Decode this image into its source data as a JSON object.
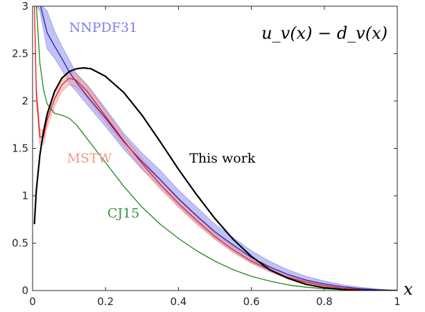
{
  "chart_data": {
    "type": "line",
    "title": "u_v(x) − d_v(x)",
    "xlabel": "x",
    "ylabel": "",
    "xlim": [
      0,
      1
    ],
    "ylim": [
      0,
      3
    ],
    "xticks": [
      0,
      0.2,
      0.4,
      0.6,
      0.8,
      1
    ],
    "xtick_labels": [
      "0",
      "0.2",
      "0.4",
      "0.6",
      "0.8",
      "1"
    ],
    "yticks": [
      0,
      0.5,
      1,
      1.5,
      2,
      2.5,
      3
    ],
    "ytick_labels": [
      "0",
      "0.5",
      "1",
      "1.5",
      "2",
      "2.5",
      "3"
    ],
    "grid": false,
    "series": [
      {
        "name": "NNPDF31",
        "color": "#1f1fb8",
        "band_color": "#8f8fef",
        "x": [
          0.005,
          0.02,
          0.04,
          0.06,
          0.08,
          0.1,
          0.12,
          0.15,
          0.2,
          0.25,
          0.3,
          0.35,
          0.4,
          0.45,
          0.5,
          0.55,
          0.6,
          0.65,
          0.7,
          0.75,
          0.8,
          0.85,
          0.9,
          0.95,
          1.0
        ],
        "y": [
          3.2,
          3.05,
          2.72,
          2.58,
          2.45,
          2.31,
          2.2,
          2.05,
          1.82,
          1.57,
          1.36,
          1.17,
          0.97,
          0.79,
          0.62,
          0.48,
          0.35,
          0.25,
          0.17,
          0.11,
          0.07,
          0.04,
          0.02,
          0.008,
          0.0
        ],
        "upper": [
          3.2,
          3.15,
          2.95,
          2.74,
          2.58,
          2.44,
          2.29,
          2.17,
          1.92,
          1.66,
          1.45,
          1.27,
          1.06,
          0.88,
          0.7,
          0.56,
          0.42,
          0.31,
          0.22,
          0.15,
          0.1,
          0.06,
          0.035,
          0.015,
          0.0
        ],
        "lower": [
          3.2,
          2.95,
          2.55,
          2.45,
          2.33,
          2.19,
          2.1,
          1.96,
          1.73,
          1.49,
          1.28,
          1.09,
          0.89,
          0.71,
          0.55,
          0.41,
          0.29,
          0.2,
          0.13,
          0.08,
          0.05,
          0.025,
          0.01,
          0.003,
          0.0
        ]
      },
      {
        "name": "MSTW",
        "color": "#e81a1a",
        "band_color": "#f2a5a5",
        "x": [
          0.005,
          0.01,
          0.02,
          0.03,
          0.04,
          0.06,
          0.08,
          0.1,
          0.12,
          0.15,
          0.2,
          0.25,
          0.3,
          0.35,
          0.4,
          0.45,
          0.5,
          0.55,
          0.6,
          0.65,
          0.7,
          0.75,
          0.8,
          0.85,
          0.9,
          0.95,
          1.0
        ],
        "y": [
          3.2,
          2.1,
          1.62,
          1.62,
          1.8,
          2.02,
          2.17,
          2.24,
          2.22,
          2.1,
          1.84,
          1.58,
          1.34,
          1.12,
          0.92,
          0.74,
          0.57,
          0.43,
          0.31,
          0.22,
          0.14,
          0.09,
          0.05,
          0.025,
          0.01,
          0.003,
          0.0
        ],
        "upper": [
          3.2,
          2.2,
          1.7,
          1.7,
          1.88,
          2.1,
          2.24,
          2.31,
          2.29,
          2.17,
          1.9,
          1.63,
          1.39,
          1.17,
          0.96,
          0.78,
          0.6,
          0.46,
          0.33,
          0.24,
          0.155,
          0.1,
          0.06,
          0.03,
          0.013,
          0.004,
          0.0
        ],
        "lower": [
          3.2,
          2.0,
          1.54,
          1.54,
          1.72,
          1.94,
          2.1,
          2.17,
          2.15,
          2.03,
          1.78,
          1.53,
          1.29,
          1.07,
          0.88,
          0.7,
          0.54,
          0.4,
          0.29,
          0.2,
          0.125,
          0.08,
          0.04,
          0.02,
          0.007,
          0.002,
          0.0
        ]
      },
      {
        "name": "CJ15",
        "color": "#1f861f",
        "x": [
          0.005,
          0.01,
          0.02,
          0.03,
          0.04,
          0.06,
          0.08,
          0.1,
          0.12,
          0.15,
          0.2,
          0.25,
          0.3,
          0.35,
          0.4,
          0.45,
          0.5,
          0.55,
          0.6,
          0.65,
          0.7,
          0.75,
          0.8,
          0.85,
          0.9,
          0.95,
          1.0
        ],
        "y": [
          3.2,
          3.05,
          2.4,
          2.12,
          1.97,
          1.87,
          1.85,
          1.82,
          1.75,
          1.6,
          1.35,
          1.1,
          0.88,
          0.7,
          0.55,
          0.42,
          0.31,
          0.22,
          0.15,
          0.1,
          0.06,
          0.035,
          0.02,
          0.01,
          0.004,
          0.001,
          0.0
        ]
      },
      {
        "name": "This work",
        "color": "#000000",
        "x": [
          0.005,
          0.01,
          0.02,
          0.03,
          0.04,
          0.06,
          0.08,
          0.1,
          0.12,
          0.14,
          0.16,
          0.2,
          0.25,
          0.3,
          0.35,
          0.4,
          0.45,
          0.5,
          0.55,
          0.6,
          0.65,
          0.7,
          0.75,
          0.8,
          0.85,
          0.9,
          0.95,
          1.0
        ],
        "y": [
          0.7,
          1.05,
          1.43,
          1.68,
          1.86,
          2.1,
          2.24,
          2.31,
          2.34,
          2.35,
          2.34,
          2.26,
          2.09,
          1.85,
          1.57,
          1.28,
          1.01,
          0.76,
          0.54,
          0.36,
          0.22,
          0.13,
          0.065,
          0.03,
          0.011,
          0.003,
          0.0005,
          0.0
        ]
      }
    ],
    "annotations": [
      {
        "text": "NNPDF31",
        "x": 0.1,
        "y": 2.73,
        "color": "#7d7ee8"
      },
      {
        "text": "MSTW",
        "x": 0.094,
        "y": 1.35,
        "color": "#f09a8a"
      },
      {
        "text": "CJ15",
        "x": 0.205,
        "y": 0.77,
        "color": "#3a913a"
      },
      {
        "text": "This work",
        "x": 0.43,
        "y": 1.35,
        "color": "#000000"
      }
    ]
  }
}
